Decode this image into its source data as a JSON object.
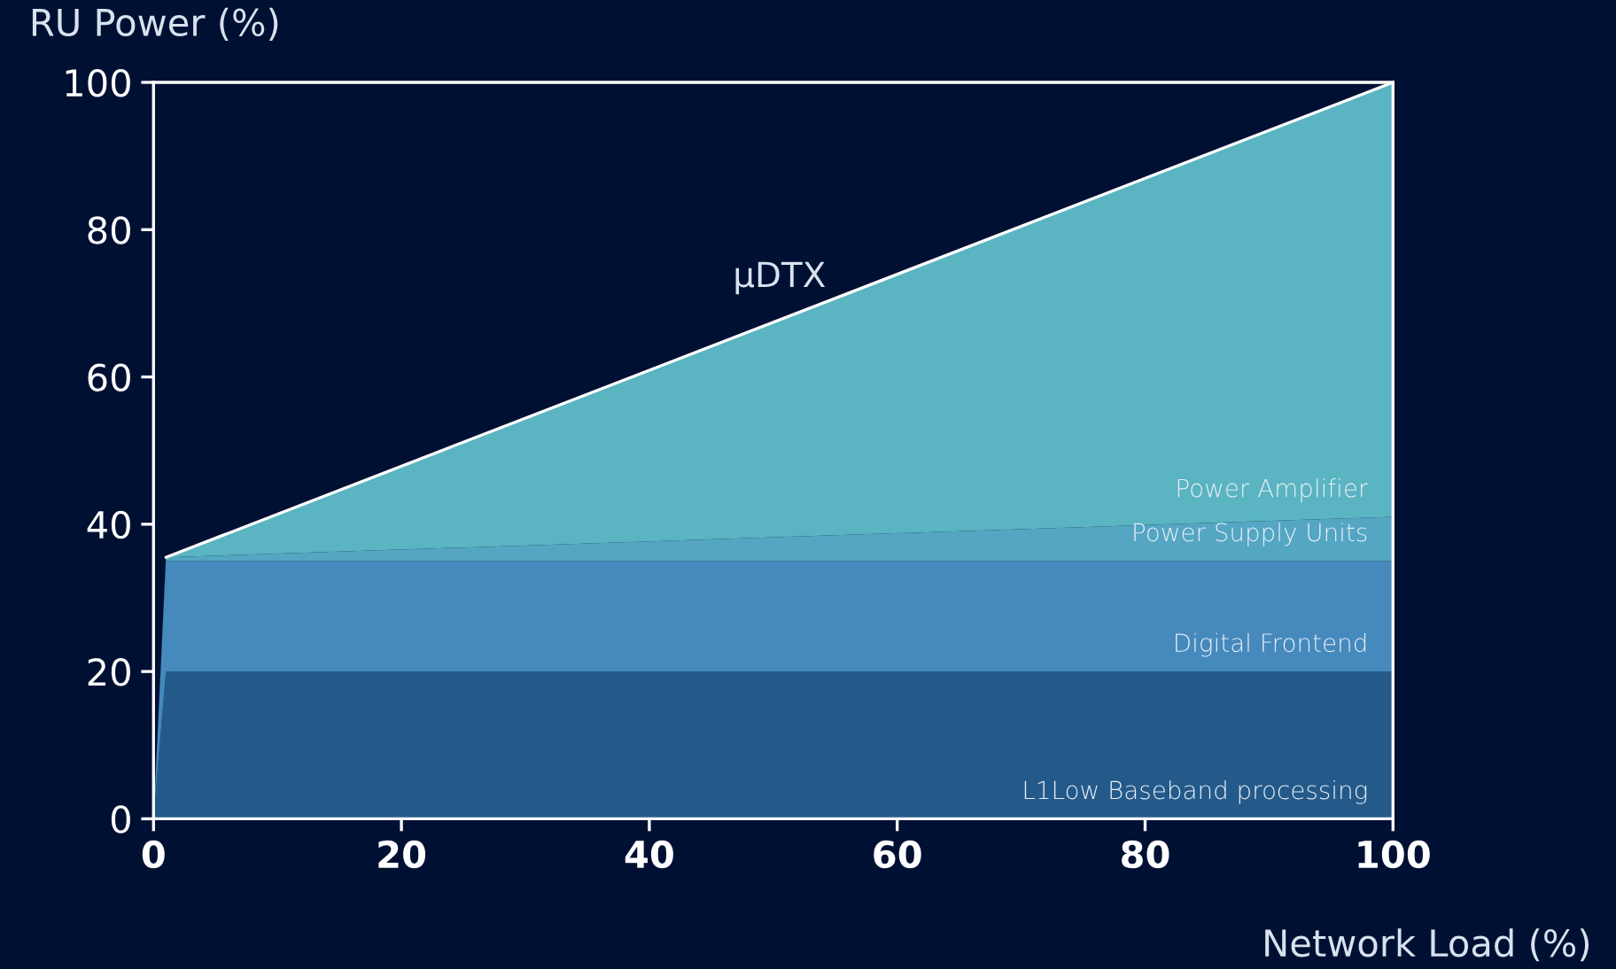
{
  "chart_data": {
    "type": "area",
    "stacked": true,
    "xlabel": "Network Load (%)",
    "ylabel": "RU Power (%)",
    "x": [
      0,
      1,
      100
    ],
    "series": [
      {
        "name": "L1Low Baseband processing",
        "color": "#245a8a",
        "values": [
          0,
          20,
          20
        ]
      },
      {
        "name": "Digital Frontend",
        "color": "#4689bd",
        "values": [
          0,
          15,
          15
        ]
      },
      {
        "name": "Power Supply Units",
        "color": "#54a6c3",
        "values": [
          0,
          0.5,
          6
        ]
      },
      {
        "name": "Power Amplifier",
        "color": "#5ab4c1",
        "values": [
          0,
          0,
          59
        ]
      }
    ],
    "annotations": [
      "µDTX"
    ],
    "xlim": [
      0,
      100
    ],
    "ylim": [
      0,
      100
    ],
    "xticks": [
      0,
      20,
      40,
      60,
      80,
      100
    ],
    "yticks": [
      0,
      20,
      40,
      60,
      80,
      100
    ],
    "grid": false,
    "legend": false
  }
}
